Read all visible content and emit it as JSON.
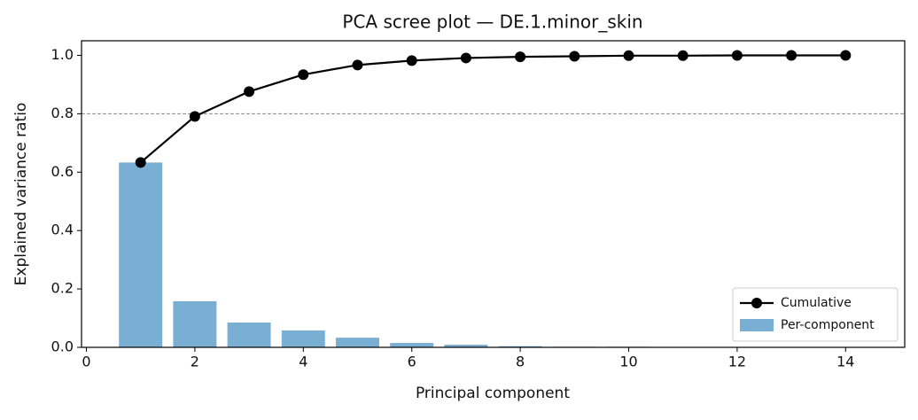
{
  "chart_data": {
    "type": "bar",
    "title": "PCA scree plot — DE.1.minor_skin",
    "x_label": "Principal component",
    "y_label": "Explained variance ratio",
    "x": [
      1,
      2,
      3,
      4,
      5,
      6,
      7,
      8,
      9,
      10,
      11,
      12,
      13,
      14
    ],
    "series": [
      {
        "name": "Cumulative",
        "type": "line",
        "color": "#000000",
        "values": [
          0.633,
          0.791,
          0.876,
          0.934,
          0.967,
          0.982,
          0.991,
          0.995,
          0.997,
          0.999,
          0.999,
          1.0,
          1.0,
          1.0
        ]
      },
      {
        "name": "Per-component",
        "type": "bar",
        "color": "#7aafd4",
        "values": [
          0.633,
          0.158,
          0.085,
          0.058,
          0.033,
          0.015,
          0.009,
          0.004,
          0.002,
          0.002,
          0,
          0.001,
          0,
          0
        ]
      }
    ],
    "threshold": 0.8,
    "xlim": [
      -0.09,
      15.09
    ],
    "ylim": [
      0,
      1.05
    ],
    "xticks": [
      0,
      2,
      4,
      6,
      8,
      10,
      12,
      14
    ],
    "yticks": [
      {
        "value": 0,
        "label": "0.0"
      },
      0.2,
      0.4,
      0.6,
      0.8,
      {
        "value": 1,
        "label": "1.0"
      }
    ],
    "legend": "lower right"
  }
}
